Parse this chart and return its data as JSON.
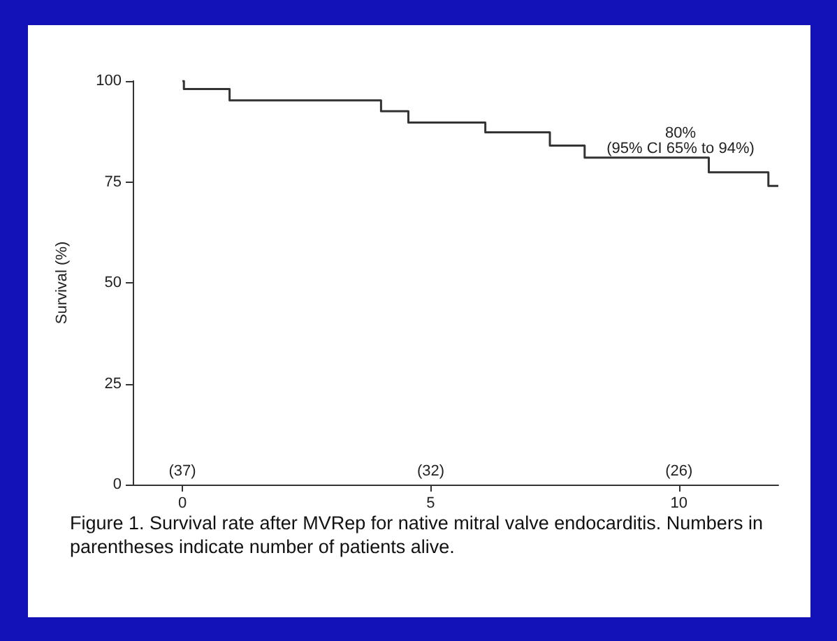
{
  "chart_data": {
    "type": "step",
    "ylabel": "Survival (%)",
    "x": [
      0,
      0.03,
      0.95,
      4.0,
      4.55,
      6.1,
      7.4,
      8.1,
      10.6,
      11.8,
      12.0
    ],
    "series": [
      {
        "color": "#333333",
        "values": [
          100,
          98,
          95.2,
          92.5,
          89.7,
          87.3,
          84,
          81,
          77.4,
          74,
          74
        ]
      }
    ],
    "xlim": [
      -1,
      12
    ],
    "xticks": [
      0,
      5,
      10
    ],
    "ylim": [
      0,
      100
    ],
    "yticks": [
      0,
      25,
      50,
      75,
      100
    ],
    "grid": false,
    "marker": "none",
    "line_style": "solid",
    "annotations": [
      "80%\n(95% CI 65% to 94%)",
      "(37)",
      "(32)",
      "(26)",
      "Figure 1. Survival rate after MVRep for native mitral valve endocarditis. Numbers in parentheses indicate number of patients alive."
    ]
  }
}
